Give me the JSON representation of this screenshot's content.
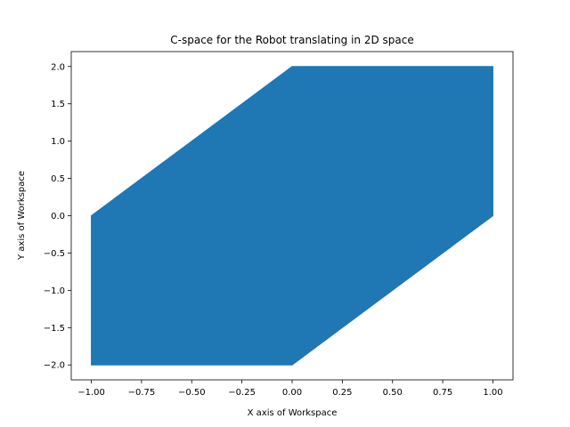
{
  "chart_data": {
    "type": "area",
    "title": "C-space for the Robot translating in 2D space",
    "xlabel": "X axis of Workspace",
    "ylabel": "Y axis of Workspace",
    "xlim": [
      -1.1,
      1.1
    ],
    "ylim": [
      -2.2,
      2.2
    ],
    "xticks": [
      -1.0,
      -0.75,
      -0.5,
      -0.25,
      0.0,
      0.25,
      0.5,
      0.75,
      1.0
    ],
    "xtick_labels": [
      "−1.00",
      "−0.75",
      "−0.50",
      "−0.25",
      "0.00",
      "0.25",
      "0.50",
      "0.75",
      "1.00"
    ],
    "yticks": [
      -2.0,
      -1.5,
      -1.0,
      -0.5,
      0.0,
      0.5,
      1.0,
      1.5,
      2.0
    ],
    "ytick_labels": [
      "−2.0",
      "−1.5",
      "−1.0",
      "−0.5",
      "0.0",
      "0.5",
      "1.0",
      "1.5",
      "2.0"
    ],
    "grid": false,
    "series": [
      {
        "polygon": [
          [
            -1,
            -2
          ],
          [
            0,
            -2
          ],
          [
            1,
            0
          ],
          [
            1,
            2
          ],
          [
            0,
            2
          ],
          [
            -1,
            0
          ]
        ],
        "color": "#1f77b4"
      }
    ]
  }
}
